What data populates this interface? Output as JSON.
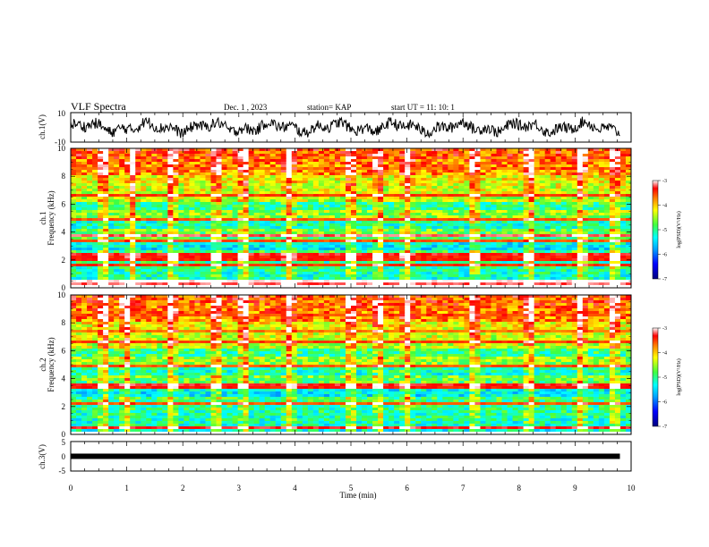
{
  "header": {
    "title": "VLF Spectra",
    "date": "Dec. 1 , 2023",
    "station": "station= KAP",
    "start": "start UT = 11: 10: 1"
  },
  "chart_data": [
    {
      "type": "line",
      "name": "ch1-waveform",
      "ylabel": "ch.1(V)",
      "xlim": [
        0,
        10
      ],
      "ylim": [
        -10,
        10
      ],
      "yticks": [
        "10",
        "-10"
      ],
      "data_extent_min": 9.8,
      "note_values": "noisy waveform approximately between -6 and 7 V"
    },
    {
      "type": "heatmap",
      "name": "ch1-spectrogram",
      "ylabel": "ch.1\nFrequency (kHz)",
      "xlim": [
        0,
        10
      ],
      "ylim": [
        0,
        10
      ],
      "yticks": [
        "0",
        "2",
        "4",
        "6",
        "8",
        "10"
      ],
      "colorbar": {
        "label": "log(PSD)(V²/Hz)",
        "range": [
          -7,
          -3
        ],
        "ticks": [
          "-3",
          "-4",
          "-5",
          "-6",
          "-7"
        ]
      },
      "bands_khz": [
        {
          "f": 0.3,
          "level": -3.2
        },
        {
          "f": 0.45,
          "level": -3.0
        },
        {
          "f": 1.6,
          "level": -3.5
        },
        {
          "f": 2.1,
          "level": -3.4
        },
        {
          "f": 2.4,
          "level": -3.3
        },
        {
          "f": 3.3,
          "level": -3.6
        },
        {
          "f": 3.75,
          "level": -3.2
        },
        {
          "f": 4.9,
          "level": -3.6
        },
        {
          "f": 6.6,
          "level": -3.5
        },
        {
          "f": 8.6,
          "level": -3.7
        }
      ],
      "spikes_min": [
        0.6,
        1.1,
        1.8,
        2.6,
        3.1,
        3.9,
        5.0,
        5.5,
        6.0,
        7.2,
        8.2,
        9.1,
        9.7
      ]
    },
    {
      "type": "heatmap",
      "name": "ch2-spectrogram",
      "ylabel": "ch.2\nFrequency (kHz)",
      "xlim": [
        0,
        10
      ],
      "ylim": [
        0,
        10
      ],
      "yticks": [
        "0",
        "2",
        "4",
        "6",
        "8",
        "10"
      ],
      "colorbar": {
        "label": "log(PSD)(V²/Hz)",
        "range": [
          -7,
          -3
        ],
        "ticks": [
          "-3",
          "-4",
          "-5",
          "-6",
          "-7"
        ]
      },
      "bands_khz": [
        {
          "f": 0.5,
          "level": -3.3
        },
        {
          "f": 2.2,
          "level": -3.6
        },
        {
          "f": 3.3,
          "level": -3.4
        },
        {
          "f": 3.6,
          "level": -3.3
        },
        {
          "f": 4.9,
          "level": -3.6
        },
        {
          "f": 6.6,
          "level": -3.5
        },
        {
          "f": 7.4,
          "level": -3.7
        },
        {
          "f": 8.6,
          "level": -3.6
        }
      ],
      "spikes_min": [
        0.6,
        1.0,
        1.8,
        2.6,
        3.1,
        3.9,
        5.0,
        5.5,
        6.0,
        7.2,
        8.2,
        9.1,
        9.7
      ]
    },
    {
      "type": "line",
      "name": "ch3-signal",
      "ylabel": "ch.3(V)",
      "xlabel": "Time (min)",
      "xlim": [
        0,
        10
      ],
      "ylim": [
        -5,
        5
      ],
      "yticks": [
        "5",
        "0",
        "-5"
      ],
      "xticks": [
        "0",
        "1",
        "2",
        "3",
        "4",
        "5",
        "6",
        "7",
        "8",
        "9",
        "10"
      ],
      "constant_value": 0,
      "data_extent_min": 9.8
    }
  ]
}
